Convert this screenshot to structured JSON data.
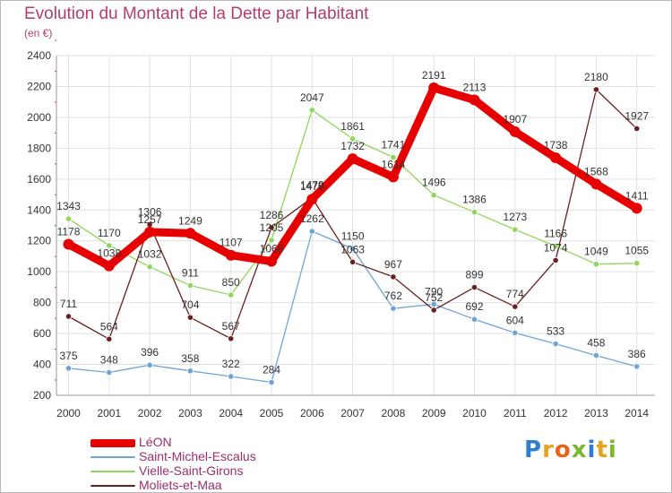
{
  "title": "Evolution du Montant de la Dette par Habitant",
  "unit": "(en €)",
  "logo": {
    "text": "Proxiti",
    "letter_colors": [
      "#2f7fcf",
      "#e8a21c",
      "#e8631c",
      "#7ab82e",
      "#2f7fcf",
      "#e8a21c",
      "#7ab82e"
    ]
  },
  "chart_data": {
    "type": "line",
    "title": "Evolution du Montant de la Dette par Habitant",
    "ylabel": "(en €)",
    "xlabel": "",
    "ylim": [
      200,
      2400
    ],
    "yticks": [
      200,
      400,
      600,
      800,
      1000,
      1200,
      1400,
      1600,
      1800,
      2000,
      2200,
      2400
    ],
    "grid": true,
    "legend_position": "bottom-left",
    "x": [
      2000,
      2001,
      2002,
      2003,
      2004,
      2005,
      2006,
      2007,
      2008,
      2009,
      2010,
      2011,
      2012,
      2013,
      2014
    ],
    "series": [
      {
        "name": "LéON",
        "color": "#e60000",
        "values": [
          1178,
          1038,
          1257,
          1249,
          1107,
          1068,
          1470,
          1732,
          1614,
          2191,
          2113,
          1907,
          1738,
          1568,
          1411
        ]
      },
      {
        "name": "Saint-Michel-Escalus",
        "color": "#6ea5d8",
        "values": [
          375,
          348,
          396,
          358,
          322,
          284,
          1262,
          1150,
          762,
          790,
          692,
          604,
          533,
          458,
          386
        ]
      },
      {
        "name": "Vielle-Saint-Girons",
        "color": "#8fd65a",
        "values": [
          1343,
          1170,
          1032,
          911,
          850,
          1205,
          2047,
          1861,
          1741,
          1496,
          1386,
          1273,
          1166,
          1049,
          1055
        ]
      },
      {
        "name": "Moliets-et-Maa",
        "color": "#6b1f1f",
        "values": [
          711,
          564,
          1306,
          704,
          567,
          1286,
          1479,
          1063,
          967,
          752,
          899,
          774,
          1074,
          2180,
          1927
        ]
      }
    ]
  }
}
